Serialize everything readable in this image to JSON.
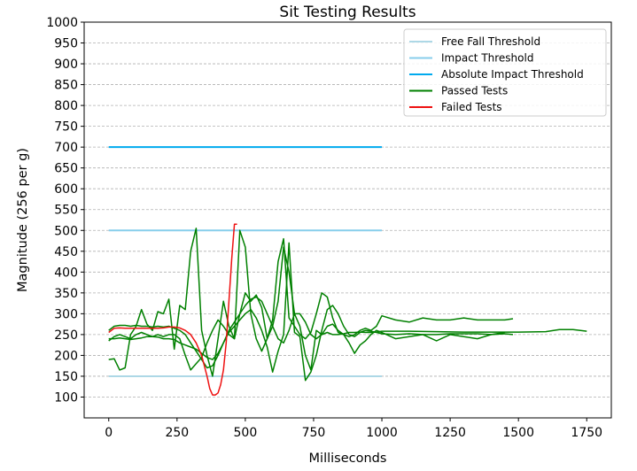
{
  "chart_data": {
    "type": "line",
    "title": "Sit Testing Results",
    "xlabel": "Milliseconds",
    "ylabel": "Magnitude (256 per g)",
    "xlim": [
      -90,
      1840
    ],
    "ylim": [
      50,
      1000
    ],
    "xticks": [
      0,
      250,
      500,
      750,
      1000,
      1250,
      1500,
      1750
    ],
    "yticks": [
      100,
      150,
      200,
      250,
      300,
      350,
      400,
      450,
      500,
      550,
      600,
      650,
      700,
      750,
      800,
      850,
      900,
      950,
      1000
    ],
    "grid": "horizontal dashed",
    "legend_position": "top-right",
    "legend": [
      {
        "label": "Free Fall Threshold",
        "color": "#add8e6"
      },
      {
        "label": "Impact Threshold",
        "color": "#87ceeb"
      },
      {
        "label": "Absolute Impact Threshold",
        "color": "#00aaee"
      },
      {
        "label": "Passed Tests",
        "color": "#008000"
      },
      {
        "label": "Failed Tests",
        "color": "#ee1111"
      }
    ],
    "thresholds": [
      {
        "name": "Free Fall Threshold",
        "value": 150,
        "x": [
          0,
          1000
        ],
        "color": "#add8e6"
      },
      {
        "name": "Impact Threshold",
        "value": 500,
        "x": [
          0,
          1000
        ],
        "color": "#87ceeb"
      },
      {
        "name": "Absolute Impact Threshold",
        "value": 700,
        "x": [
          0,
          1000
        ],
        "color": "#00aaee"
      }
    ],
    "passed_tests": [
      {
        "x": [
          0,
          20,
          40,
          60,
          80,
          100,
          120,
          140,
          160,
          180,
          200,
          220,
          240,
          260,
          280,
          300,
          320,
          340,
          360,
          380,
          400,
          420,
          440,
          460,
          480,
          500,
          520,
          540,
          560,
          580,
          600,
          620,
          640,
          660,
          680,
          700,
          720,
          740,
          760,
          780,
          800,
          820,
          840,
          860,
          880,
          900,
          920,
          940,
          960,
          980,
          1000,
          1050,
          1100,
          1150,
          1200,
          1250,
          1300,
          1350,
          1400,
          1450,
          1480
        ],
        "y": [
          190,
          192,
          165,
          170,
          250,
          270,
          310,
          275,
          260,
          305,
          300,
          335,
          215,
          320,
          310,
          450,
          505,
          260,
          200,
          150,
          240,
          330,
          270,
          240,
          300,
          350,
          330,
          345,
          315,
          240,
          270,
          330,
          460,
          400,
          300,
          270,
          200,
          165,
          260,
          250,
          270,
          275,
          260,
          250,
          245,
          250,
          260,
          265,
          260,
          270,
          295,
          285,
          280,
          290,
          285,
          285,
          290,
          285,
          285,
          285,
          288
        ]
      },
      {
        "x": [
          0,
          20,
          40,
          60,
          80,
          100,
          120,
          140,
          160,
          180,
          200,
          220,
          240,
          260,
          280,
          300,
          320,
          340,
          360,
          380,
          400,
          420,
          440,
          460,
          480,
          500,
          520,
          540,
          560,
          580,
          600,
          620,
          640,
          660,
          680,
          700,
          720,
          740,
          760,
          780,
          800,
          820,
          840,
          860,
          880,
          900,
          920,
          940,
          960,
          980,
          1000,
          1050,
          1100,
          1150,
          1200,
          1250,
          1300,
          1350,
          1400,
          1450
        ],
        "y": [
          235,
          245,
          250,
          245,
          240,
          250,
          255,
          250,
          245,
          250,
          245,
          250,
          250,
          240,
          200,
          165,
          180,
          195,
          230,
          260,
          285,
          270,
          250,
          240,
          500,
          460,
          300,
          240,
          210,
          240,
          285,
          425,
          480,
          290,
          270,
          250,
          240,
          255,
          300,
          350,
          340,
          290,
          255,
          250,
          230,
          205,
          225,
          235,
          250,
          260,
          255,
          240,
          245,
          250,
          235,
          250,
          245,
          240,
          250,
          255
        ]
      },
      {
        "x": [
          0,
          20,
          40,
          60,
          80,
          100,
          120,
          140,
          160,
          180,
          200,
          220,
          240,
          260,
          280,
          300,
          320,
          340,
          360,
          380,
          400,
          420,
          440,
          460,
          480,
          500,
          520,
          540,
          560,
          580,
          600,
          620,
          640,
          660,
          680,
          700,
          720,
          740,
          760,
          780,
          800,
          820,
          840,
          860,
          880,
          900,
          920,
          940,
          960,
          980,
          1000,
          1100,
          1200,
          1300,
          1400,
          1500,
          1600,
          1650,
          1700,
          1750
        ],
        "y": [
          260,
          270,
          272,
          272,
          270,
          272,
          270,
          270,
          268,
          270,
          268,
          270,
          265,
          260,
          250,
          230,
          210,
          190,
          170,
          175,
          200,
          230,
          260,
          280,
          300,
          320,
          335,
          340,
          330,
          300,
          270,
          240,
          230,
          260,
          300,
          300,
          280,
          250,
          240,
          250,
          255,
          250,
          250,
          252,
          255,
          255,
          256,
          255,
          255,
          256,
          258,
          258,
          257,
          256,
          256,
          256,
          257,
          262,
          262,
          258
        ]
      },
      {
        "x": [
          0,
          20,
          40,
          60,
          80,
          100,
          120,
          140,
          160,
          180,
          200,
          220,
          240,
          260,
          280,
          300,
          320,
          340,
          360,
          380,
          400,
          420,
          440,
          460,
          480,
          500,
          520,
          540,
          560,
          580,
          600,
          620,
          640,
          660,
          680,
          700,
          720,
          740,
          760,
          780,
          800,
          820,
          840,
          860,
          880,
          900,
          920,
          940,
          960,
          980,
          1000,
          1050,
          1100,
          1150,
          1200,
          1250,
          1300,
          1350,
          1400,
          1450,
          1480
        ],
        "y": [
          240,
          240,
          242,
          240,
          238,
          240,
          242,
          245,
          245,
          244,
          240,
          240,
          238,
          230,
          225,
          220,
          215,
          205,
          195,
          190,
          205,
          230,
          255,
          270,
          285,
          300,
          310,
          290,
          260,
          220,
          160,
          210,
          250,
          470,
          255,
          245,
          140,
          160,
          200,
          260,
          310,
          320,
          300,
          270,
          250,
          245,
          255,
          260,
          258,
          255,
          252,
          250,
          252,
          250,
          250,
          252,
          252,
          252,
          250,
          252,
          250
        ]
      }
    ],
    "failed_tests": [
      {
        "x": [
          0,
          20,
          40,
          60,
          80,
          100,
          120,
          140,
          160,
          180,
          200,
          220,
          240,
          260,
          280,
          300,
          320,
          340,
          360,
          370,
          380,
          390,
          400,
          410,
          420,
          430,
          440,
          450,
          460,
          470
        ],
        "y": [
          255,
          265,
          266,
          265,
          265,
          265,
          265,
          265,
          265,
          265,
          266,
          268,
          268,
          266,
          260,
          250,
          230,
          200,
          150,
          120,
          105,
          105,
          110,
          130,
          165,
          230,
          330,
          430,
          515,
          515
        ]
      }
    ]
  }
}
